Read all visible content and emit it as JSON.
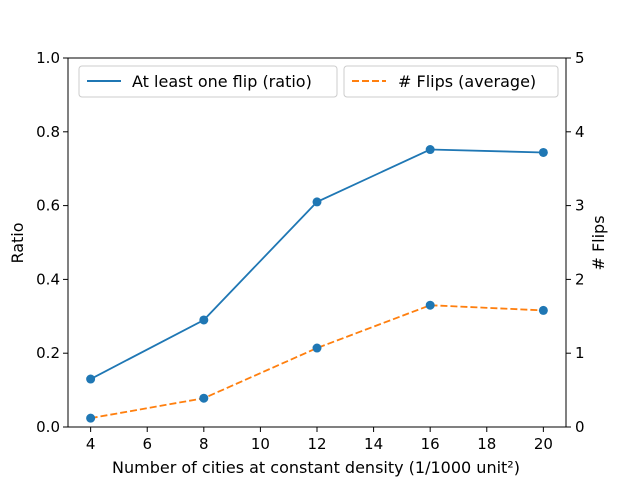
{
  "chart_data": {
    "type": "line",
    "x": [
      4,
      8,
      12,
      16,
      20
    ],
    "xlabel": "Number of cities at constant density (1/1000 unit²)",
    "xlim": [
      3.2,
      20.8
    ],
    "xticks": [
      4,
      6,
      8,
      10,
      12,
      14,
      16,
      18,
      20
    ],
    "ylabel_left": "Ratio",
    "ylim_left": [
      0,
      1
    ],
    "yticks_left": [
      "0.0",
      "0.2",
      "0.4",
      "0.6",
      "0.8",
      "1.0"
    ],
    "ylabel_right": "# Flips",
    "ylim_right": [
      0,
      5
    ],
    "yticks_right": [
      "0",
      "1",
      "2",
      "3",
      "4",
      "5"
    ],
    "series": [
      {
        "name": "At least one flip (ratio)",
        "axis": "left",
        "style": "solid",
        "values": [
          0.13,
          0.29,
          0.61,
          0.752,
          0.744
        ]
      },
      {
        "name": "# Flips (average)",
        "axis": "right",
        "style": "dashed",
        "values": [
          0.12,
          0.39,
          1.07,
          1.65,
          1.58
        ]
      }
    ],
    "grid": false,
    "legend": "top",
    "colors": {
      "series1": "#1f77b4",
      "series2": "#ff7f0e",
      "marker": "#1f77b4"
    }
  }
}
